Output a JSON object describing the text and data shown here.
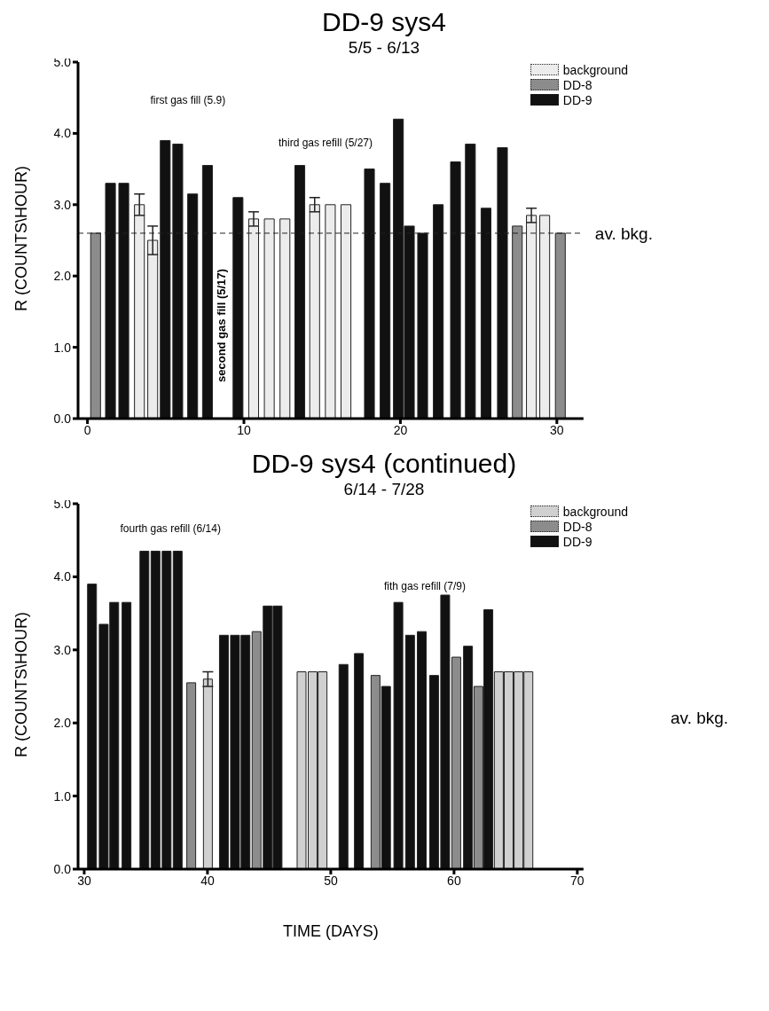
{
  "chart_data": [
    {
      "type": "bar",
      "title": "DD-9 sys4",
      "subtitle": "5/5 - 6/13",
      "ylabel": "R (COUNTS\\HOUR)",
      "xlim": [
        -0.6,
        31.7
      ],
      "xticks": [
        0,
        10,
        20,
        30
      ],
      "ylim": [
        0,
        5
      ],
      "yticks": [
        {
          "value": 0,
          "label": "0.0"
        },
        {
          "value": 1,
          "label": "1.0"
        },
        {
          "value": 2,
          "label": "2.0"
        },
        {
          "value": 3,
          "label": "3.0"
        },
        {
          "value": 4,
          "label": "4.0"
        },
        {
          "value": 5,
          "label": "5.0"
        }
      ],
      "legend": "top right",
      "series": [
        {
          "name": "background",
          "color": "#ececec",
          "x": [
            3.3,
            4.15,
            10.6,
            11.6,
            12.6,
            14.5,
            15.5,
            16.5,
            28.35,
            29.2
          ],
          "values": [
            3.0,
            2.5,
            2.8,
            2.8,
            2.8,
            3.0,
            3.0,
            3.0,
            2.85,
            2.85
          ],
          "errors": [
            0.15,
            0.2,
            0.1,
            null,
            null,
            0.1,
            null,
            null,
            0.1,
            null
          ]
        },
        {
          "name": "DD-8",
          "color": "#8c8c8c",
          "x": [
            0.5,
            27.45,
            30.2
          ],
          "values": [
            2.6,
            2.7,
            2.6
          ]
        },
        {
          "name": "DD-9",
          "color": "#111111",
          "x": [
            1.45,
            2.3,
            4.95,
            5.75,
            6.7,
            7.65,
            9.6,
            13.55,
            18.0,
            19.0,
            19.85,
            20.55,
            21.4,
            22.4,
            23.5,
            24.45,
            25.45,
            26.5
          ],
          "values": [
            3.3,
            3.3,
            3.9,
            3.85,
            3.15,
            3.55,
            3.1,
            3.55,
            3.5,
            3.3,
            4.2,
            2.7,
            2.6,
            3.0,
            3.6,
            3.85,
            2.95,
            3.8
          ]
        }
      ],
      "ref_lines": [
        {
          "axis": "y",
          "value": 2.6,
          "label": "av. bkg.",
          "line_style": "dashed"
        }
      ],
      "annotations": [
        "first gas fill (5.9)",
        "second gas fill (5/17)",
        "third gas refill (5/27)"
      ]
    },
    {
      "type": "bar",
      "title": "DD-9 sys4 (continued)",
      "subtitle": "6/14 - 7/28",
      "ylabel": "R (COUNTS\\HOUR)",
      "xlabel": "TIME (DAYS)",
      "xlim": [
        29.5,
        70.5
      ],
      "xticks": [
        30,
        40,
        50,
        60,
        70
      ],
      "ylim": [
        0,
        5
      ],
      "yticks": [
        {
          "value": 0,
          "label": "0.0"
        },
        {
          "value": 1,
          "label": "1.0"
        },
        {
          "value": 2,
          "label": "2.0"
        },
        {
          "value": 3,
          "label": "3.0"
        },
        {
          "value": 4,
          "label": "4.0"
        },
        {
          "value": 5,
          "label": "5.0"
        }
      ],
      "legend": "top right",
      "series": [
        {
          "name": "background",
          "color": "#d0d0d0",
          "x": [
            40.0,
            47.6,
            48.5,
            49.3,
            63.6,
            64.4,
            65.2,
            66.0
          ],
          "values": [
            2.6,
            2.7,
            2.7,
            2.7,
            2.7,
            2.7,
            2.7,
            2.7
          ],
          "errors": [
            0.1,
            null,
            null,
            null,
            null,
            null,
            null,
            null
          ]
        },
        {
          "name": "DD-8",
          "color": "#8c8c8c",
          "x": [
            38.65,
            43.95,
            53.6,
            60.15,
            61.95
          ],
          "values": [
            2.55,
            3.25,
            2.65,
            2.9,
            2.5
          ]
        },
        {
          "name": "DD-9",
          "color": "#111111",
          "x": [
            30.6,
            31.55,
            32.4,
            33.4,
            34.85,
            35.75,
            36.65,
            37.55,
            41.3,
            42.2,
            43.05,
            44.85,
            45.65,
            51.0,
            52.25,
            54.45,
            55.45,
            56.4,
            57.35,
            58.35,
            59.25,
            61.1,
            62.75
          ],
          "values": [
            3.9,
            3.35,
            3.65,
            3.65,
            4.35,
            4.35,
            4.35,
            4.35,
            3.2,
            3.2,
            3.2,
            3.6,
            3.6,
            2.8,
            2.95,
            2.5,
            3.65,
            3.2,
            3.25,
            2.65,
            3.75,
            3.05,
            3.55
          ]
        }
      ],
      "annotations": [
        "fourth gas refill (6/14)",
        "fith gas refill (7/9)",
        "av. bkg."
      ]
    }
  ]
}
